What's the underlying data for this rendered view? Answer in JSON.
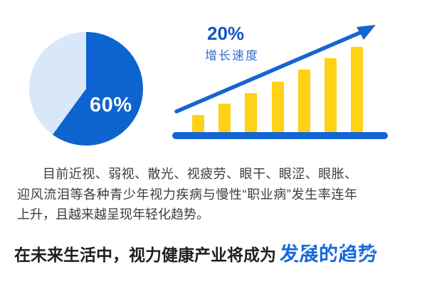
{
  "colors": {
    "pie_dark": "#0D63CF",
    "pie_light": "#D9E8F8",
    "bar_yellow": "#FFD216",
    "chart_blue": "#1565D2",
    "rate_blue": "#1454C6",
    "caption_blue": "#2E6ED4",
    "text_dark": "#3C3C3C",
    "headline_black": "#1F1F1F",
    "highlight_blue": "#1668DD"
  },
  "chart_data": [
    {
      "type": "pie",
      "title": "",
      "slices": [
        {
          "label": "60%",
          "value": 60,
          "color": "#0D63CF"
        },
        {
          "label": "",
          "value": 40,
          "color": "#D9E8F8"
        }
      ],
      "start_angle_deg": 0,
      "direction": "clockwise",
      "data_label": "60%",
      "data_label_color": "#FFFFFF"
    },
    {
      "type": "bar",
      "categories": [
        "1",
        "2",
        "3",
        "4",
        "5",
        "6",
        "7"
      ],
      "values": [
        24,
        40,
        55,
        71,
        88,
        104,
        120
      ],
      "value_units": "relative height (px, unlabeled axis)",
      "title": "20% 增长速度",
      "xlabel": "",
      "ylabel": "",
      "ylim": [
        0,
        130
      ],
      "grid": false,
      "legend": "none",
      "bar_color": "#FFD216",
      "baseline_color": "#1565D2",
      "annotations": [
        {
          "text": "20%",
          "style": "bold blue"
        },
        {
          "text": "增长速度",
          "style": "blue"
        },
        {
          "shape": "upward-trend-arrow",
          "color": "#1565D2"
        }
      ]
    }
  ],
  "pie": {
    "label": "60%"
  },
  "growth": {
    "rate": "20%",
    "caption": "增长速度"
  },
  "paragraph": {
    "text": "目前近视、弱视、散光、视疲劳、眼干、眼涩、眼胀、迎风流泪等各种青少年视力疾病与慢性“职业病”发生率连年上升，且越来越呈现年轻化趋势。"
  },
  "headline": {
    "prefix": "在未来生活中，视力健康产业将成为",
    "highlight": "发展的趋势"
  }
}
